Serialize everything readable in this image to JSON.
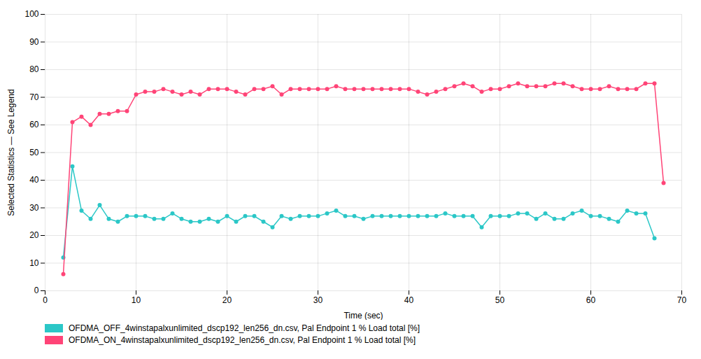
{
  "chart_data": {
    "type": "line",
    "xlabel": "Time (sec)",
    "ylabel": "Selected Statistics — See Legend",
    "xlim": [
      0,
      70
    ],
    "ylim": [
      0,
      100
    ],
    "xticks": [
      0,
      10,
      20,
      30,
      40,
      50,
      60,
      70
    ],
    "yticks": [
      0,
      10,
      20,
      30,
      40,
      50,
      60,
      70,
      80,
      90,
      100
    ],
    "grid": true,
    "legend": "bottom",
    "marker": "circle",
    "series": [
      {
        "name": "OFDMA_OFF_4winstapalxunlimited_dscp192_len256_dn.csv, Pal Endpoint 1 % Load total [%]",
        "color": "#2BC7C7",
        "x": [
          2,
          3,
          4,
          5,
          6,
          7,
          8,
          9,
          10,
          11,
          12,
          13,
          14,
          15,
          16,
          17,
          18,
          19,
          20,
          21,
          22,
          23,
          24,
          25,
          26,
          27,
          28,
          29,
          30,
          31,
          32,
          33,
          34,
          35,
          36,
          37,
          38,
          39,
          40,
          41,
          42,
          43,
          44,
          45,
          46,
          47,
          48,
          49,
          50,
          51,
          52,
          53,
          54,
          55,
          56,
          57,
          58,
          59,
          60,
          61,
          62,
          63,
          64,
          65,
          66,
          67
        ],
        "values": [
          12,
          45,
          29,
          26,
          31,
          26,
          25,
          27,
          27,
          27,
          26,
          26,
          28,
          26,
          25,
          25,
          26,
          25,
          27,
          25,
          27,
          27,
          25,
          23,
          27,
          26,
          27,
          27,
          27,
          28,
          29,
          27,
          27,
          26,
          27,
          27,
          27,
          27,
          27,
          27,
          27,
          27,
          28,
          27,
          27,
          27,
          23,
          27,
          27,
          27,
          28,
          28,
          26,
          28,
          26,
          26,
          28,
          29,
          27,
          27,
          26,
          25,
          29,
          28,
          28,
          19
        ]
      },
      {
        "name": "OFDMA_ON_4winstapalxunlimited_dscp192_len256_dn.csv, Pal Endpoint 1 % Load total [%]",
        "color": "#FF4477",
        "x": [
          2,
          3,
          4,
          5,
          6,
          7,
          8,
          9,
          10,
          11,
          12,
          13,
          14,
          15,
          16,
          17,
          18,
          19,
          20,
          21,
          22,
          23,
          24,
          25,
          26,
          27,
          28,
          29,
          30,
          31,
          32,
          33,
          34,
          35,
          36,
          37,
          38,
          39,
          40,
          41,
          42,
          43,
          44,
          45,
          46,
          47,
          48,
          49,
          50,
          51,
          52,
          53,
          54,
          55,
          56,
          57,
          58,
          59,
          60,
          61,
          62,
          63,
          64,
          65,
          66,
          67,
          68
        ],
        "values": [
          6,
          61,
          63,
          60,
          64,
          64,
          65,
          65,
          71,
          72,
          72,
          73,
          72,
          71,
          72,
          71,
          73,
          73,
          73,
          72,
          71,
          73,
          73,
          74,
          71,
          73,
          73,
          73,
          73,
          73,
          74,
          73,
          73,
          73,
          73,
          73,
          73,
          73,
          73,
          72,
          71,
          72,
          73,
          74,
          75,
          74,
          72,
          73,
          73,
          74,
          75,
          74,
          74,
          74,
          75,
          75,
          74,
          73,
          73,
          73,
          74,
          73,
          73,
          73,
          75,
          75,
          39
        ]
      }
    ]
  }
}
